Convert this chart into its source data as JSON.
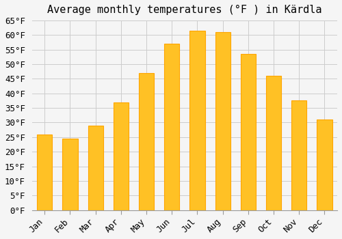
{
  "title": "Average monthly temperatures (°F ) in Kärdla",
  "months": [
    "Jan",
    "Feb",
    "Mar",
    "Apr",
    "May",
    "Jun",
    "Jul",
    "Aug",
    "Sep",
    "Oct",
    "Nov",
    "Dec"
  ],
  "values": [
    26,
    24.5,
    29,
    37,
    47,
    57,
    61.5,
    61,
    53.5,
    46,
    37.5,
    31
  ],
  "bar_color": "#FFC125",
  "bar_edge_color": "#FFA500",
  "ylim": [
    0,
    65
  ],
  "ytick_step": 5,
  "background_color": "#F5F5F5",
  "grid_color": "#CCCCCC",
  "title_fontsize": 11,
  "tick_fontsize": 9,
  "font_family": "monospace"
}
